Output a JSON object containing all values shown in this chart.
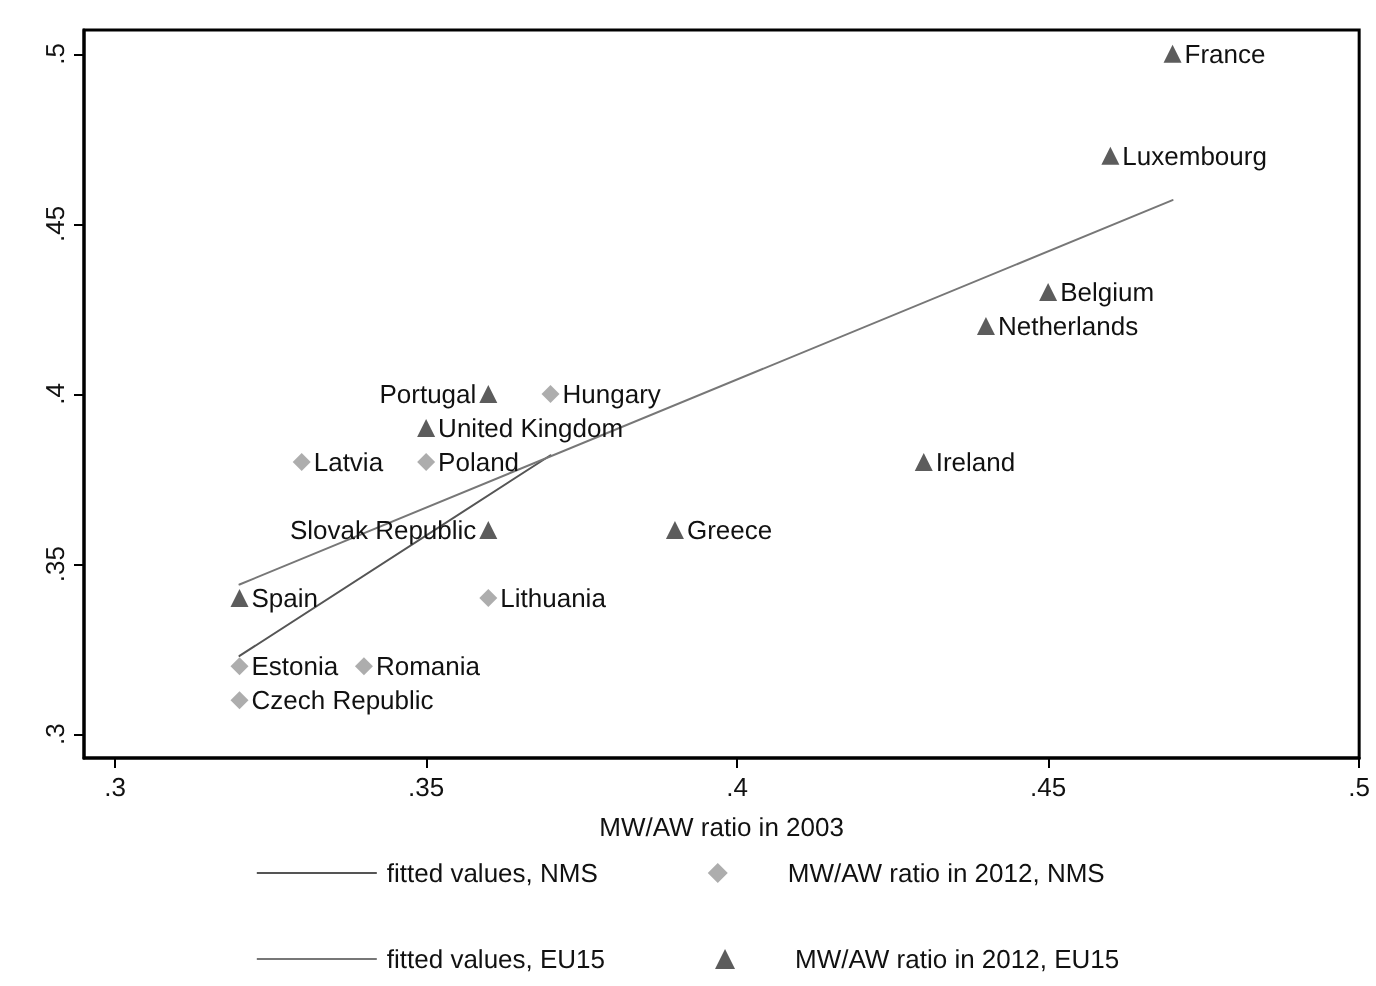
{
  "chart_data": {
    "type": "scatter",
    "xlabel": "MW/AW ratio in 2003",
    "xlim": [
      0.295,
      0.5
    ],
    "xticks": [
      {
        "value": 0.3,
        "label": ".3"
      },
      {
        "value": 0.35,
        "label": ".35"
      },
      {
        "value": 0.4,
        "label": ".4"
      },
      {
        "value": 0.45,
        "label": ".45"
      },
      {
        "value": 0.5,
        "label": ".5"
      }
    ],
    "ylim": [
      0.293,
      0.507
    ],
    "yticks": [
      {
        "value": 0.3,
        "label": ".3"
      },
      {
        "value": 0.35,
        "label": ".35"
      },
      {
        "value": 0.4,
        "label": ".4"
      },
      {
        "value": 0.45,
        "label": ".45"
      },
      {
        "value": 0.5,
        "label": ".5"
      }
    ],
    "grid": false,
    "legend": "bottom",
    "series": [
      {
        "name": "fitted values, NMS",
        "type": "line",
        "marker": "none",
        "color": "#555555",
        "x": [
          0.32,
          0.37
        ],
        "values": [
          0.323,
          0.382
        ]
      },
      {
        "name": "MW/AW ratio in 2012, NMS",
        "type": "scatter",
        "marker": "diamond",
        "color": "#999999",
        "x": [
          0.33,
          0.35,
          0.36,
          0.32,
          0.34,
          0.32,
          0.37
        ],
        "values": [
          0.38,
          0.38,
          0.34,
          0.32,
          0.32,
          0.31,
          0.4
        ]
      },
      {
        "name": "fitted values, EU15",
        "type": "line",
        "marker": "none",
        "color": "#777777",
        "x": [
          0.32,
          0.47
        ],
        "values": [
          0.344,
          0.457
        ]
      },
      {
        "name": "MW/AW ratio in 2012, EU15",
        "type": "scatter",
        "marker": "triangle",
        "color": "#333333",
        "x": [
          0.47,
          0.46,
          0.45,
          0.44,
          0.43,
          0.36,
          0.35,
          0.36,
          0.39,
          0.32
        ],
        "values": [
          0.5,
          0.47,
          0.43,
          0.42,
          0.38,
          0.4,
          0.39,
          0.36,
          0.36,
          0.34
        ]
      }
    ],
    "annotations": [
      {
        "text": "Latvia",
        "x": 0.33,
        "y": 0.38
      },
      {
        "text": "Poland",
        "x": 0.35,
        "y": 0.38
      },
      {
        "text": "Lithuania",
        "x": 0.36,
        "y": 0.34
      },
      {
        "text": "Estonia",
        "x": 0.32,
        "y": 0.32
      },
      {
        "text": "Romania",
        "x": 0.34,
        "y": 0.32
      },
      {
        "text": "Czech Republic",
        "x": 0.32,
        "y": 0.31
      },
      {
        "text": "Hungary",
        "x": 0.37,
        "y": 0.4
      },
      {
        "text": "France",
        "x": 0.47,
        "y": 0.5
      },
      {
        "text": "Luxembourg",
        "x": 0.46,
        "y": 0.47
      },
      {
        "text": "Belgium",
        "x": 0.45,
        "y": 0.43
      },
      {
        "text": "Netherlands",
        "x": 0.44,
        "y": 0.42
      },
      {
        "text": "Ireland",
        "x": 0.43,
        "y": 0.38
      },
      {
        "text": "Portugal",
        "x": 0.36,
        "y": 0.4
      },
      {
        "text": "United Kingdom",
        "x": 0.35,
        "y": 0.39
      },
      {
        "text": "Slovak Republic",
        "x": 0.36,
        "y": 0.36
      },
      {
        "text": "Greece",
        "x": 0.39,
        "y": 0.36
      },
      {
        "text": "Spain",
        "x": 0.32,
        "y": 0.34
      }
    ]
  }
}
